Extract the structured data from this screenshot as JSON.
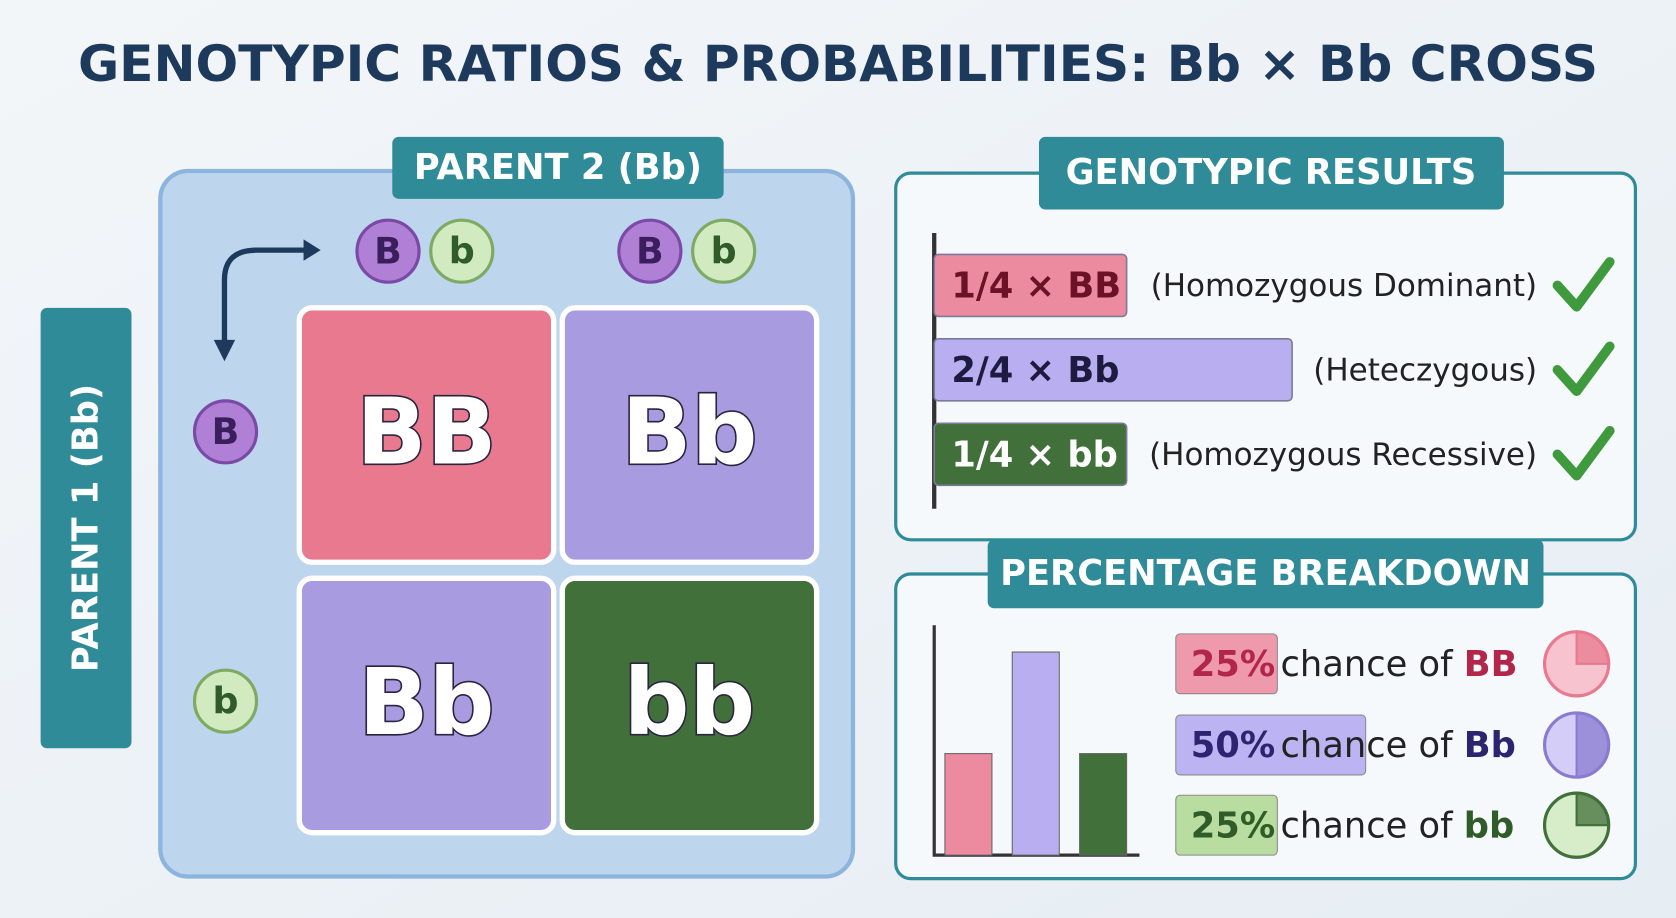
{
  "title": "GENOTYPIC RATIOS & PROBABILITIES: Bb × Bb CROSS",
  "punnett": {
    "parent2_label": "PARENT 2 (Bb)",
    "parent1_label": "PARENT 1 (Bb)",
    "parent2_alleles": [
      [
        "B",
        "b"
      ],
      [
        "B",
        "b"
      ]
    ],
    "parent1_alleles": [
      "B",
      "b"
    ],
    "cells": [
      [
        "BB",
        "Bb"
      ],
      [
        "Bb",
        "bb"
      ]
    ]
  },
  "results": {
    "title": "GENOTYPIC RESULTS",
    "rows": [
      {
        "ratio": "1/4 × BB",
        "description": "(Homozygous Dominant)"
      },
      {
        "ratio": "2/4 × Bb",
        "description": "(Heteczygous)"
      },
      {
        "ratio": "1/4 × bb",
        "description": "(Homozygous Recessive)"
      }
    ]
  },
  "breakdown": {
    "title": "PERCENTAGE BREAKDOWN",
    "rows": [
      {
        "percent": {
          "value": 25,
          "label": "25%"
        },
        "text": "chance of",
        "genotype": "BB"
      },
      {
        "percent": {
          "value": 50,
          "label": "50%"
        },
        "text": "chance of",
        "genotype": "Bb"
      },
      {
        "percent": {
          "value": 25,
          "label": "25%"
        },
        "text": "chance of",
        "genotype": "bb"
      }
    ]
  }
}
